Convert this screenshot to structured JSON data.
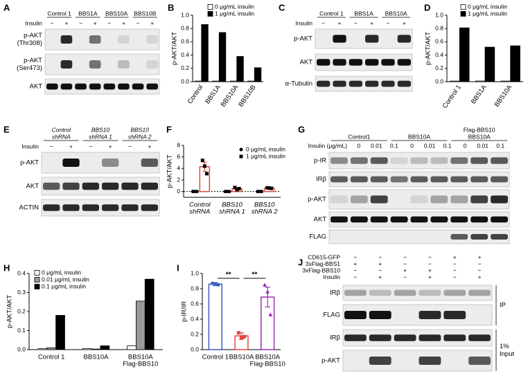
{
  "blots": [
    {
      "letter": "A",
      "groups": [
        [
          "Control 1"
        ],
        [
          "BBS1A"
        ],
        [
          "BBS10A"
        ],
        [
          "BBS10B"
        ]
      ],
      "treatment": [
        "Insulin"
      ],
      "signs": [
        [
          "−",
          "+",
          "−",
          "+",
          "−",
          "+",
          "−",
          "+"
        ]
      ],
      "rows": [
        [
          "p-AKT",
          "(Thr308)"
        ],
        [
          "p-AKT",
          "(Ser473)"
        ],
        [
          "AKT"
        ]
      ]
    },
    {
      "letter": "C",
      "groups": [
        [
          "Control 1"
        ],
        [
          "BBS1A"
        ],
        [
          "BBS10A"
        ]
      ],
      "treatment": [
        "Insulin"
      ],
      "signs": [
        [
          "−",
          "+",
          "−",
          "+",
          "−",
          "+"
        ]
      ],
      "rows": [
        [
          "p-AKT"
        ],
        [
          "AKT"
        ],
        [
          "α-Tubulin"
        ]
      ]
    },
    {
      "letter": "E",
      "italic_groups": true,
      "groups": [
        [
          "Control",
          "shRNA"
        ],
        [
          "BBS10",
          "shRNA 1"
        ],
        [
          "BBS10",
          "shRNA 2"
        ]
      ],
      "treatment": [
        "Insulin"
      ],
      "signs": [
        [
          "−",
          "+",
          "−",
          "+",
          "−",
          "+"
        ]
      ],
      "rows": [
        [
          "p-AKT"
        ],
        [
          "AKT"
        ],
        [
          "ACTIN"
        ]
      ]
    },
    {
      "letter": "G",
      "groups": [
        [
          "Control1"
        ],
        [
          "BBS10A"
        ],
        [
          "Flag-BBS10",
          "BBS10A"
        ]
      ],
      "treatment": [
        "Insulin (μg/mL)"
      ],
      "signs": [
        [
          "0",
          "0.01",
          "0.1",
          "0",
          "0.01",
          "0.1",
          "0",
          "0.01",
          "0.1"
        ]
      ],
      "rows": [
        [
          "p-IR"
        ],
        [
          "IRβ"
        ],
        [
          "p-AKT"
        ],
        [
          "AKT"
        ],
        [
          "FLAG"
        ]
      ]
    },
    {
      "letter": "J",
      "treatment": [
        "CD615-GFP",
        "3xFlag-BBS1",
        "3xFlag-BBS10",
        "Insulin"
      ],
      "signs": [
        [
          "−",
          "−",
          "−",
          "−",
          "+",
          "+"
        ],
        [
          "+",
          "+",
          "−",
          "−",
          "−",
          "−"
        ],
        [
          "−",
          "−",
          "+",
          "+",
          "−",
          "−"
        ],
        [
          "−",
          "+",
          "−",
          "+",
          "−",
          "+"
        ]
      ],
      "rows": [
        [
          "IRβ"
        ],
        [
          "FLAG"
        ],
        [
          "IRβ"
        ],
        [
          "p-AKT"
        ]
      ],
      "side_labels": [
        [
          "IP"
        ],
        [
          "1%",
          "Input"
        ]
      ]
    }
  ],
  "chart_data": [
    {
      "letter": "B",
      "type": "bar",
      "ylabel": "p-AKT/AKT",
      "filled": true,
      "categories": [
        [
          "Control"
        ],
        [
          "BBS1A"
        ],
        [
          "BBS10A"
        ],
        [
          "BBS10B"
        ]
      ],
      "series": [
        {
          "name": "0 μg/mL insulin",
          "color": "#ffffff",
          "values": [
            0.01,
            0.01,
            0.01,
            0.01
          ]
        },
        {
          "name": "1 μg/mL insulin",
          "color": "#000000",
          "values": [
            0.86,
            0.74,
            0.38,
            0.21
          ]
        }
      ],
      "ylim": [
        0,
        1
      ],
      "yticks": [
        {
          "value": 0,
          "label": "0.0"
        },
        0.2,
        0.4,
        0.6,
        0.8,
        {
          "value": 1,
          "label": "1.0"
        }
      ]
    },
    {
      "letter": "D",
      "type": "bar",
      "ylabel": "p-AKT/AKT",
      "filled": true,
      "categories": [
        [
          "Control 1"
        ],
        [
          "BBS1A"
        ],
        [
          "BBS10A"
        ]
      ],
      "series": [
        {
          "name": "0 μg/mL insulin",
          "color": "#ffffff",
          "values": [
            0.01,
            0.01,
            0.01
          ]
        },
        {
          "name": "1 μg/mL insulin",
          "color": "#000000",
          "values": [
            0.81,
            0.52,
            0.54
          ]
        }
      ],
      "ylim": [
        0,
        1
      ],
      "yticks": [
        {
          "value": 0,
          "label": "0.0"
        },
        0.2,
        0.4,
        0.6,
        0.8,
        {
          "value": 1,
          "label": "1.0"
        }
      ]
    },
    {
      "letter": "F",
      "type": "bar",
      "ylabel": "p-AKT/AKT",
      "filled": false,
      "zero_line": true,
      "italic_categories": true,
      "categories": [
        [
          "Control",
          "shRNA"
        ],
        [
          "BBS10",
          "shRNA 1"
        ],
        [
          "BBS10",
          "shRNA 2"
        ]
      ],
      "series": [
        {
          "name": "0 μg/mL insulin",
          "color": "#000000",
          "point_color": "#000000",
          "marker": "circle",
          "values": [
            0,
            0,
            0
          ],
          "errors": [
            0,
            0,
            0
          ],
          "points": [
            [
              0,
              0,
              0
            ],
            [
              0,
              0,
              0
            ],
            [
              0,
              0,
              0
            ]
          ]
        },
        {
          "name": "1 μg/mL insulin",
          "color": "#e8453c",
          "point_color": "#000000",
          "marker": "square",
          "values": [
            4.3,
            0.5,
            0.6
          ],
          "errors": [
            0.8,
            0.2,
            0.1
          ],
          "points": [
            [
              5.4,
              4.4,
              3.1
            ],
            [
              0.7,
              0.3,
              0.5
            ],
            [
              0.65,
              0.6,
              0.55
            ]
          ]
        }
      ],
      "ylim": [
        -1,
        8
      ],
      "yticks": [
        0,
        2,
        4,
        6,
        8
      ]
    },
    {
      "letter": "H",
      "type": "bar",
      "ylabel": "p-AKT/AKT",
      "filled": true,
      "categories": [
        [
          "Control 1"
        ],
        [
          "BBS10A"
        ],
        [
          "BBS10A",
          "Flag-BBS10"
        ]
      ],
      "series": [
        {
          "name": "0 μg/mL insulin",
          "color": "#ffffff",
          "values": [
            0.005,
            0.005,
            0.02
          ]
        },
        {
          "name": "0.01 μg/mL insulin",
          "color": "#999999",
          "values": [
            0.01,
            0.003,
            0.255
          ]
        },
        {
          "name": "0.1 μg/mL insulin",
          "color": "#000000",
          "values": [
            0.18,
            0.02,
            0.37
          ]
        }
      ],
      "ylim": [
        0,
        0.4
      ],
      "yticks": [
        {
          "value": 0,
          "label": "0.0"
        },
        0.1,
        0.2,
        0.3,
        0.4
      ]
    },
    {
      "letter": "I",
      "type": "bar",
      "ylabel": "p-IR/IR",
      "filled": false,
      "categories": [
        [
          "Control 1"
        ],
        [
          "BBS10A"
        ],
        [
          "BBS10A",
          "Flag-BBS10"
        ]
      ],
      "series": [
        {
          "colors": [
            "#3b5bbf",
            "#e8453c",
            "#9b30b0"
          ],
          "markers": [
            "circle",
            "square",
            "triangle"
          ],
          "values": [
            0.86,
            0.18,
            0.69
          ],
          "errors": [
            0.02,
            0.04,
            0.13
          ],
          "points": [
            [
              0.87,
              0.86,
              0.85
            ],
            [
              0.22,
              0.15,
              0.17
            ],
            [
              0.85,
              0.76,
              0.46
            ]
          ]
        }
      ],
      "annotations": [
        "**",
        "**"
      ],
      "ylim": [
        0,
        1
      ],
      "yticks": [
        {
          "value": 0,
          "label": "0.0"
        },
        0.2,
        0.4,
        0.6,
        0.8,
        {
          "value": 1,
          "label": "1.0"
        }
      ]
    }
  ]
}
